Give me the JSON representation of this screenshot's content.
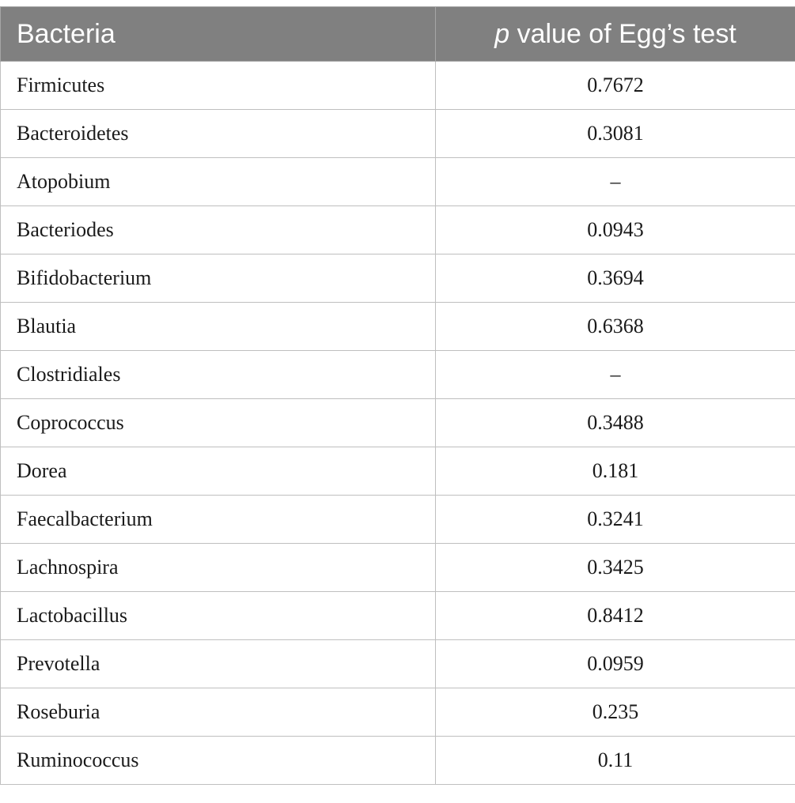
{
  "table": {
    "header": {
      "col1": "Bacteria",
      "col2_italic": "p",
      "col2_rest": " value of Egg’s test"
    },
    "rows": [
      {
        "name": "Firmicutes",
        "value": "0.7672"
      },
      {
        "name": "Bacteroidetes",
        "value": "0.3081"
      },
      {
        "name": "Atopobium",
        "value": "–"
      },
      {
        "name": "Bacteriodes",
        "value": "0.0943"
      },
      {
        "name": "Bifidobacterium",
        "value": "0.3694"
      },
      {
        "name": "Blautia",
        "value": "0.6368"
      },
      {
        "name": "Clostridiales",
        "value": "–"
      },
      {
        "name": "Coprococcus",
        "value": "0.3488"
      },
      {
        "name": "Dorea",
        "value": "0.181"
      },
      {
        "name": "Faecalbacterium",
        "value": "0.3241"
      },
      {
        "name": "Lachnospira",
        "value": "0.3425"
      },
      {
        "name": "Lactobacillus",
        "value": "0.8412"
      },
      {
        "name": "Prevotella",
        "value": "0.0959"
      },
      {
        "name": "Roseburia",
        "value": "0.235"
      },
      {
        "name": "Ruminococcus",
        "value": "0.11"
      }
    ]
  }
}
